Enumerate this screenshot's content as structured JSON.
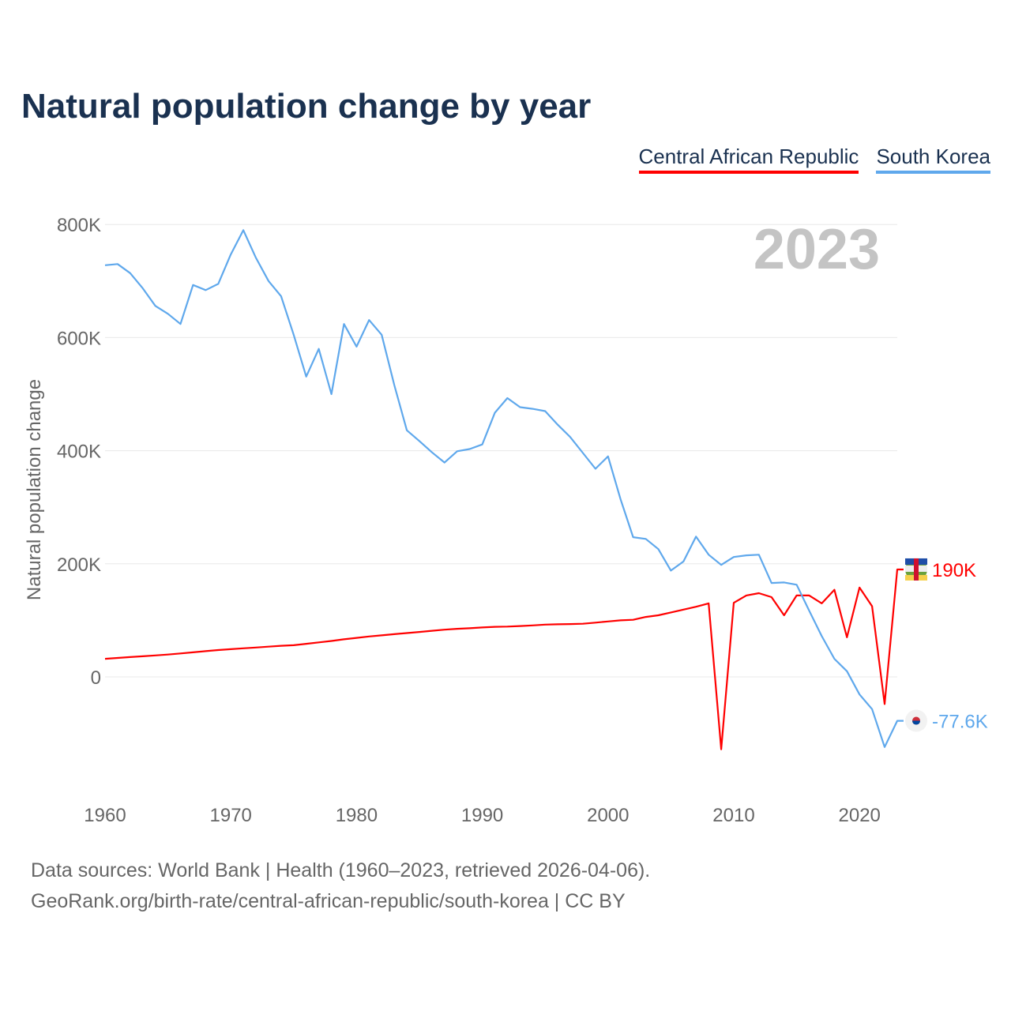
{
  "chart_data": {
    "type": "line",
    "title": "Natural population change by year",
    "xlabel": "",
    "ylabel": "Natural population change",
    "year_watermark": "2023",
    "xlim": [
      1960,
      2023
    ],
    "ylim": [
      -200000,
      850000
    ],
    "x_ticks": [
      1960,
      1970,
      1980,
      1990,
      2000,
      2010,
      2020
    ],
    "y_ticks": [
      0,
      200000,
      400000,
      600000,
      800000
    ],
    "y_tick_labels": [
      "0",
      "200K",
      "400K",
      "600K",
      "800K"
    ],
    "grid": true,
    "legend_position": "top-right",
    "x": [
      1960,
      1961,
      1962,
      1963,
      1964,
      1965,
      1966,
      1967,
      1968,
      1969,
      1970,
      1971,
      1972,
      1973,
      1974,
      1975,
      1976,
      1977,
      1978,
      1979,
      1980,
      1981,
      1982,
      1983,
      1984,
      1985,
      1986,
      1987,
      1988,
      1989,
      1990,
      1991,
      1992,
      1993,
      1994,
      1995,
      1996,
      1997,
      1998,
      1999,
      2000,
      2001,
      2002,
      2003,
      2004,
      2005,
      2006,
      2007,
      2008,
      2009,
      2010,
      2011,
      2012,
      2013,
      2014,
      2015,
      2016,
      2017,
      2018,
      2019,
      2020,
      2021,
      2022,
      2023
    ],
    "series": [
      {
        "name": "Central African Republic",
        "color": "#ff0000",
        "end_label": "190K",
        "values": [
          32000,
          33500,
          35000,
          36500,
          38000,
          39500,
          41500,
          43500,
          45500,
          47500,
          49000,
          50500,
          52000,
          53500,
          55000,
          56000,
          58500,
          61000,
          63500,
          66500,
          69000,
          71500,
          73500,
          75500,
          77500,
          79500,
          81500,
          83500,
          85000,
          86000,
          87500,
          88500,
          89000,
          90000,
          91000,
          92500,
          93000,
          93500,
          94000,
          96000,
          98000,
          100000,
          101000,
          106000,
          109000,
          114000,
          119000,
          124000,
          130000,
          -128000,
          131000,
          144000,
          148000,
          141000,
          109000,
          144000,
          144000,
          130000,
          154000,
          70000,
          158000,
          125000,
          -48000,
          190000
        ]
      },
      {
        "name": "South Korea",
        "color": "#5fa8ec",
        "end_label": "-77.6K",
        "values": [
          728000,
          730000,
          714000,
          687000,
          656000,
          642000,
          624000,
          693000,
          684000,
          695000,
          747000,
          790000,
          741000,
          700000,
          673000,
          605000,
          531000,
          580000,
          500000,
          624000,
          584000,
          631000,
          605000,
          516000,
          436000,
          417000,
          397000,
          379000,
          399000,
          403000,
          411000,
          467000,
          493000,
          477000,
          474000,
          470000,
          446000,
          424000,
          396000,
          368000,
          390000,
          314000,
          247000,
          244000,
          226000,
          188000,
          204000,
          248000,
          216000,
          198000,
          212000,
          215000,
          216000,
          166000,
          167000,
          163000,
          117000,
          72000,
          32000,
          10000,
          -31000,
          -57000,
          -124000,
          -77600
        ]
      }
    ]
  },
  "footer": {
    "line1": "Data sources: World Bank | Health (1960–2023, retrieved 2026-04-06).",
    "line2": "GeoRank.org/birth-rate/central-african-republic/south-korea | CC BY"
  }
}
